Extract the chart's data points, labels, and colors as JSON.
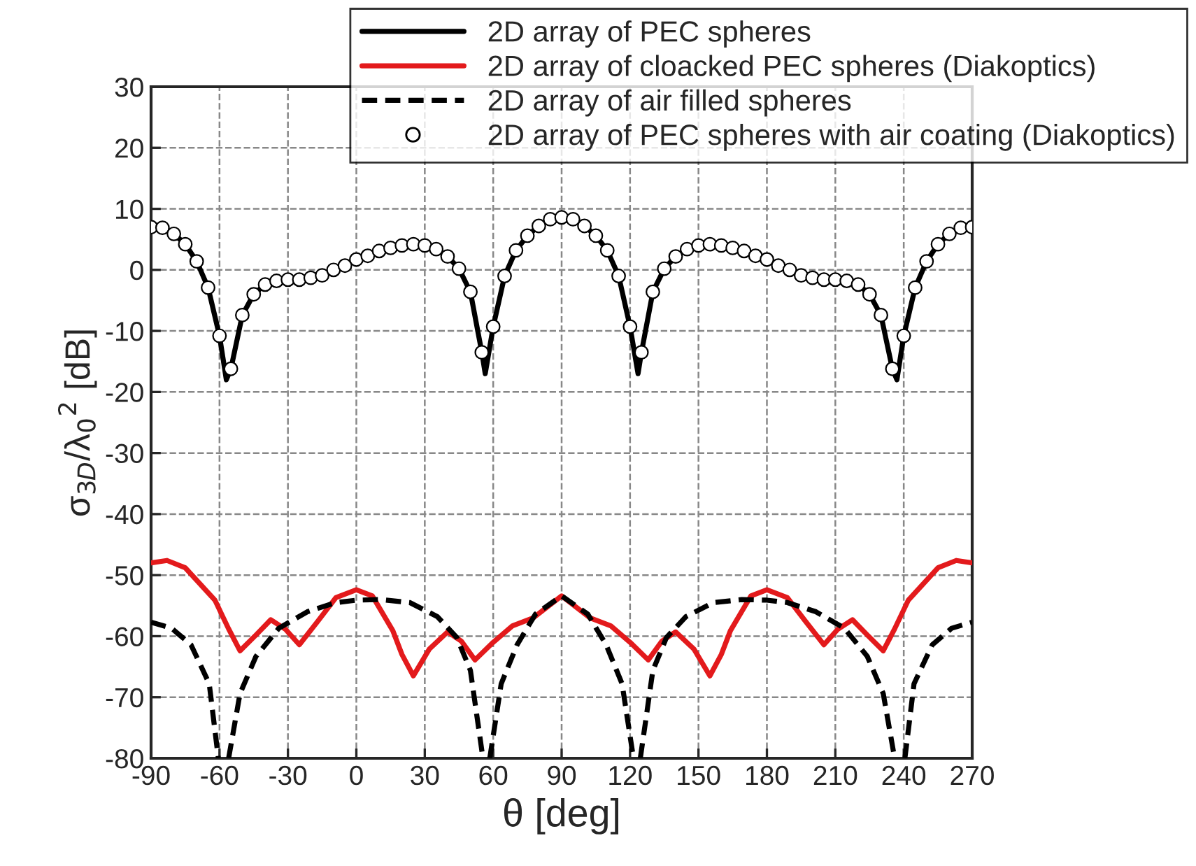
{
  "chart_data": {
    "type": "line",
    "xlabel": "θ [deg]",
    "ylabel": "σ$_{3D}$/λ$_{0}$$^{2}$ [dB]",
    "xlim": [
      -90,
      270
    ],
    "xticks": [
      -90,
      -60,
      -30,
      0,
      30,
      60,
      90,
      120,
      150,
      180,
      210,
      240,
      270
    ],
    "ylim": [
      -80,
      30
    ],
    "yticks": [
      -80,
      -70,
      -60,
      -50,
      -40,
      -30,
      -20,
      -10,
      0,
      10,
      20,
      30
    ],
    "grid": true,
    "legend": "top right",
    "series": [
      {
        "name": "2D array of PEC spheres",
        "color": "#000000",
        "line_style": "solid",
        "x": [
          -90,
          -85,
          -80,
          -75,
          -70,
          -65,
          -60,
          -57,
          -55,
          -50,
          -45,
          -40,
          -35,
          -30,
          -25,
          -20,
          -15,
          -10,
          -5,
          0,
          5,
          10,
          15,
          20,
          25,
          30,
          35,
          40,
          45,
          50,
          55,
          56.5,
          60,
          65,
          70,
          75,
          80,
          85,
          90,
          95,
          100,
          105,
          110,
          115,
          120,
          123.5,
          125,
          130,
          135,
          140,
          145,
          150,
          155,
          160,
          165,
          170,
          175,
          180,
          185,
          190,
          195,
          200,
          205,
          210,
          215,
          220,
          225,
          230,
          235,
          237,
          240,
          245,
          250,
          255,
          260,
          265,
          270
        ],
        "values": [
          7.0,
          6.9,
          5.9,
          4.2,
          1.4,
          -2.9,
          -10.8,
          -18.0,
          -16.2,
          -7.4,
          -4.0,
          -2.4,
          -1.8,
          -1.6,
          -1.6,
          -1.3,
          -0.9,
          0.0,
          0.7,
          1.7,
          2.3,
          3.1,
          3.6,
          4.0,
          4.2,
          4.0,
          3.4,
          2.2,
          0.2,
          -3.6,
          -13.5,
          -17.0,
          -9.3,
          -1.0,
          3.2,
          5.6,
          7.2,
          8.3,
          8.6,
          8.3,
          7.2,
          5.6,
          3.2,
          -1.0,
          -9.3,
          -17.0,
          -13.5,
          -3.6,
          0.2,
          2.2,
          3.4,
          4.0,
          4.2,
          4.0,
          3.6,
          3.1,
          2.3,
          1.7,
          0.7,
          0.0,
          -0.9,
          -1.3,
          -1.6,
          -1.6,
          -1.8,
          -2.4,
          -4.0,
          -7.4,
          -16.2,
          -18.0,
          -10.8,
          -2.9,
          1.4,
          4.2,
          5.9,
          6.9,
          7.0
        ]
      },
      {
        "name": "2D array of cloacked PEC spheres (Diakoptics)",
        "color": "#e31a1c",
        "line_style": "solid",
        "x": [
          -90,
          -83,
          -75,
          -62,
          -56,
          -51,
          -44,
          -37.5,
          -31,
          -25,
          -17,
          -9,
          0,
          7,
          16,
          20,
          25,
          32,
          40,
          46,
          52,
          60,
          68.5,
          77.5,
          90,
          102.5,
          111.5,
          120,
          128,
          134,
          140,
          148,
          155,
          160,
          164,
          173,
          180,
          189,
          197,
          205,
          211,
          217.5,
          224,
          231,
          236,
          242,
          255,
          263,
          270
        ],
        "values": [
          -48.0,
          -47.6,
          -48.8,
          -54.1,
          -58.8,
          -62.4,
          -59.8,
          -57.3,
          -58.9,
          -61.4,
          -57.6,
          -53.7,
          -52.4,
          -53.4,
          -59.1,
          -63.0,
          -66.5,
          -62.1,
          -59.3,
          -60.8,
          -63.9,
          -61.0,
          -58.3,
          -57.0,
          -53.4,
          -57.0,
          -58.3,
          -61.0,
          -63.9,
          -60.8,
          -59.3,
          -62.1,
          -66.5,
          -63.0,
          -59.1,
          -53.4,
          -52.4,
          -53.7,
          -57.6,
          -61.4,
          -58.9,
          -57.3,
          -59.8,
          -62.4,
          -58.8,
          -54.1,
          -48.8,
          -47.6,
          -48.0
        ]
      },
      {
        "name": "2D array of air filled spheres",
        "color": "#000000",
        "line_style": "dashed",
        "x": [
          -90,
          -81,
          -72.5,
          -64.5,
          -60.5,
          -58,
          -56,
          -51,
          -44,
          -34,
          -21.5,
          -9,
          0,
          11,
          23.5,
          35.5,
          44,
          50,
          55.5,
          57,
          58.5,
          63.5,
          70.5,
          78.5,
          90,
          101.5,
          109.5,
          116.5,
          121.5,
          123,
          124.5,
          130,
          136,
          144.5,
          156.5,
          169,
          180,
          189,
          201.5,
          214,
          224,
          231,
          236,
          238,
          240.5,
          244.5,
          252.5,
          261,
          270
        ],
        "values": [
          -57.7,
          -58.7,
          -61.4,
          -67.8,
          -80,
          null,
          -80,
          -69.4,
          -63.3,
          -58.7,
          -56.0,
          -54.5,
          -54.1,
          -54.0,
          -54.5,
          -56.8,
          -60.2,
          -65.6,
          -80,
          null,
          -80,
          -67.8,
          -61.4,
          -56.4,
          -53.4,
          -56.4,
          -61.4,
          -67.8,
          -80,
          null,
          -80,
          -65.6,
          -60.2,
          -56.8,
          -54.5,
          -54.0,
          -54.1,
          -54.5,
          -56.0,
          -58.7,
          -63.3,
          -69.4,
          -80,
          null,
          -80,
          -67.8,
          -61.4,
          -58.7,
          -57.7
        ]
      },
      {
        "name": "2D array of PEC spheres with air coating (Diakoptics)",
        "type": "scatter",
        "color": "#000000",
        "marker": "circle",
        "x": [
          -90,
          -85,
          -80,
          -75,
          -70,
          -65,
          -60,
          -55,
          -50,
          -45,
          -40,
          -35,
          -30,
          -25,
          -20,
          -15,
          -10,
          -5,
          0,
          5,
          10,
          15,
          20,
          25,
          30,
          35,
          40,
          45,
          50,
          55,
          60,
          65,
          70,
          75,
          80,
          85,
          90,
          95,
          100,
          105,
          110,
          115,
          120,
          125,
          130,
          135,
          140,
          145,
          150,
          155,
          160,
          165,
          170,
          175,
          180,
          185,
          190,
          195,
          200,
          205,
          210,
          215,
          220,
          225,
          230,
          235,
          240,
          245,
          250,
          255,
          260,
          265,
          270
        ],
        "values": [
          7.0,
          6.9,
          5.9,
          4.2,
          1.4,
          -2.9,
          -10.8,
          -16.2,
          -7.4,
          -4.0,
          -2.4,
          -1.8,
          -1.6,
          -1.6,
          -1.3,
          -0.9,
          0.0,
          0.7,
          1.7,
          2.3,
          3.1,
          3.6,
          4.0,
          4.2,
          4.0,
          3.4,
          2.2,
          0.2,
          -3.6,
          -13.5,
          -9.3,
          -1.0,
          3.2,
          5.6,
          7.2,
          8.3,
          8.6,
          8.3,
          7.2,
          5.6,
          3.2,
          -1.0,
          -9.3,
          -13.5,
          -3.6,
          0.2,
          2.2,
          3.4,
          4.0,
          4.2,
          4.0,
          3.6,
          3.1,
          2.3,
          1.7,
          0.7,
          0.0,
          -0.9,
          -1.3,
          -1.6,
          -1.6,
          -1.8,
          -2.4,
          -4.0,
          -7.4,
          -16.2,
          -10.8,
          -2.9,
          1.4,
          4.2,
          5.9,
          6.9,
          7.0
        ]
      }
    ]
  }
}
